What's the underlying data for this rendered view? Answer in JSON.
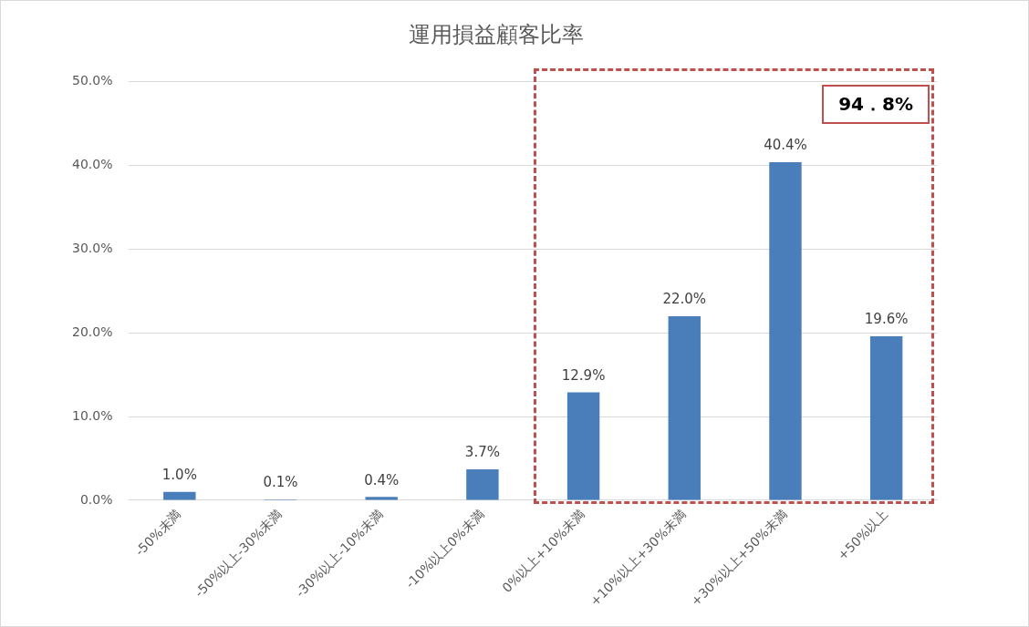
{
  "chart_data": {
    "type": "bar",
    "title": "運用損益顧客比率",
    "categories": [
      "-50%未満",
      "-50%以上-30%未満",
      "-30%以上-10%未満",
      "-10%以上0%未満",
      "0%以上+10%未満",
      "+10%以上+30%未満",
      "+30%以上+50%未満",
      "+50%以上"
    ],
    "values": [
      1.0,
      0.1,
      0.4,
      3.7,
      12.9,
      22.0,
      40.4,
      19.6
    ],
    "value_labels": [
      "1.0%",
      "0.1%",
      "0.4%",
      "3.7%",
      "12.9%",
      "22.0%",
      "40.4%",
      "19.6%"
    ],
    "color": "#4a7ebb",
    "ylim": [
      0,
      50
    ],
    "yticks": [
      {
        "value": 0,
        "label": "0.0%"
      },
      {
        "value": 10,
        "label": "10.0%"
      },
      {
        "value": 20,
        "label": "20.0%"
      },
      {
        "value": 30,
        "label": "30.0%"
      },
      {
        "value": 40,
        "label": "40.0%"
      },
      {
        "value": 50,
        "label": "50.0%"
      }
    ],
    "grid": "y",
    "legend": false,
    "annotations": [
      "94．8%"
    ]
  }
}
